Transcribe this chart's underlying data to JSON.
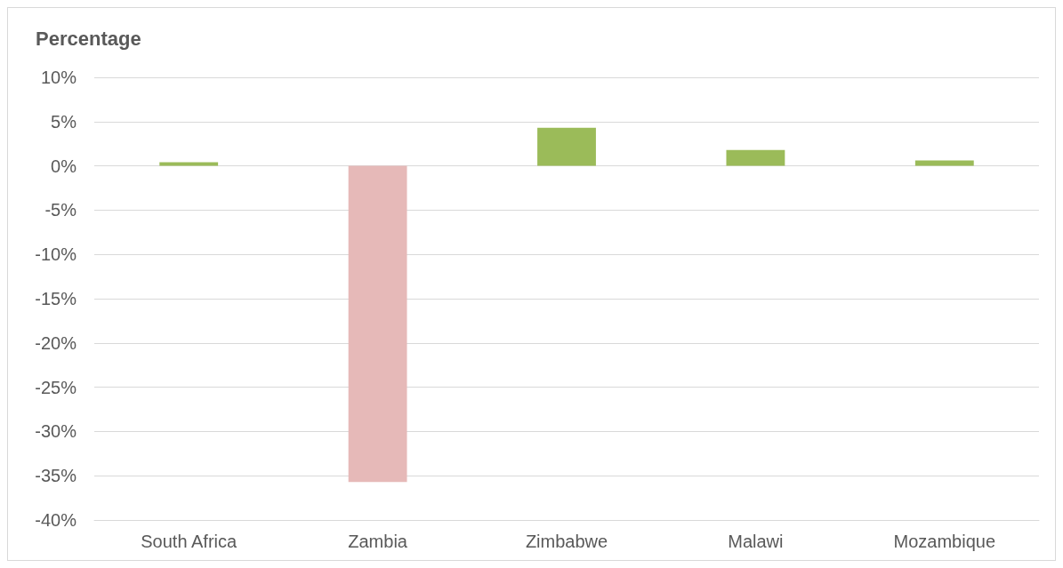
{
  "chart_data": {
    "type": "bar",
    "ylabel": "Percentage",
    "categories": [
      "South Africa",
      "Zambia",
      "Zimbabwe",
      "Malawi",
      "Mozambique"
    ],
    "values": [
      0.4,
      -35.7,
      4.3,
      1.8,
      0.6
    ],
    "colors": [
      "#9bbb59",
      "#e6b9b8",
      "#9bbb59",
      "#9bbb59",
      "#9bbb59"
    ],
    "ylim": [
      -40,
      10
    ],
    "yticks": [
      {
        "value": -40,
        "label": "-40%"
      },
      {
        "value": -35,
        "label": "-35%"
      },
      {
        "value": -30,
        "label": "-30%"
      },
      {
        "value": -25,
        "label": "-25%"
      },
      {
        "value": -20,
        "label": "-20%"
      },
      {
        "value": -15,
        "label": "-15%"
      },
      {
        "value": -10,
        "label": "-10%"
      },
      {
        "value": -5,
        "label": "-5%"
      },
      {
        "value": 0,
        "label": "0%"
      },
      {
        "value": 5,
        "label": "5%"
      },
      {
        "value": 10,
        "label": "10%"
      }
    ],
    "grid": "y"
  }
}
